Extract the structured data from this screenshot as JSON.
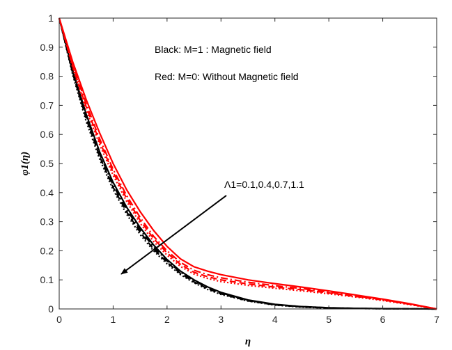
{
  "chart_data": {
    "type": "line",
    "xlabel": "η",
    "ylabel": "φ1(η)",
    "xlim": [
      0,
      7
    ],
    "ylim": [
      0,
      1
    ],
    "xticks": [
      "0",
      "1",
      "2",
      "3",
      "4",
      "5",
      "6",
      "7"
    ],
    "yticks": [
      "0",
      "0.1",
      "0.2",
      "0.3",
      "0.4",
      "0.5",
      "0.6",
      "0.7",
      "0.8",
      "0.9",
      "1"
    ],
    "grid": false,
    "annotations": {
      "black_legend": "Black: M=1 :   Magnetic field",
      "red_legend": "Red:   M=0:   Without Magnetic field",
      "arrow_label": "Λ1=0.1,0.4,0.7,1.1",
      "arrow_from": [
        3.1,
        0.39
      ],
      "arrow_to": [
        1.15,
        0.12
      ]
    },
    "x": [
      0,
      0.25,
      0.5,
      0.75,
      1.0,
      1.25,
      1.5,
      1.75,
      2.0,
      2.25,
      2.5,
      2.75,
      3.0,
      3.5,
      4.0,
      4.5,
      5.0,
      5.5,
      6.0,
      6.5,
      7.0
    ],
    "series": [
      {
        "color": "#000000",
        "dash": "solid",
        "values": [
          1,
          0.82,
          0.67,
          0.54,
          0.435,
          0.35,
          0.28,
          0.22,
          0.17,
          0.13,
          0.1,
          0.076,
          0.057,
          0.031,
          0.016,
          0.008,
          0.004,
          0.002,
          0.001,
          0.0004,
          0
        ]
      },
      {
        "color": "#000000",
        "dash": "dashdot",
        "values": [
          1,
          0.815,
          0.662,
          0.532,
          0.426,
          0.342,
          0.272,
          0.213,
          0.165,
          0.126,
          0.097,
          0.073,
          0.055,
          0.03,
          0.015,
          0.008,
          0.004,
          0.002,
          0.001,
          0.0004,
          0
        ]
      },
      {
        "color": "#000000",
        "dash": "dashed",
        "values": [
          1,
          0.81,
          0.655,
          0.524,
          0.418,
          0.334,
          0.264,
          0.206,
          0.16,
          0.122,
          0.093,
          0.07,
          0.052,
          0.028,
          0.014,
          0.007,
          0.003,
          0.0015,
          0.0008,
          0.0003,
          0
        ]
      },
      {
        "color": "#000000",
        "dash": "dotted",
        "values": [
          1,
          0.805,
          0.645,
          0.515,
          0.41,
          0.326,
          0.256,
          0.2,
          0.155,
          0.118,
          0.09,
          0.067,
          0.05,
          0.027,
          0.013,
          0.006,
          0.003,
          0.0015,
          0.0007,
          0.0003,
          0
        ]
      },
      {
        "color": "#ff0000",
        "dash": "solid",
        "values": [
          1,
          0.85,
          0.72,
          0.605,
          0.5,
          0.41,
          0.335,
          0.27,
          0.215,
          0.172,
          0.145,
          0.13,
          0.118,
          0.1,
          0.087,
          0.075,
          0.062,
          0.048,
          0.034,
          0.018,
          0
        ]
      },
      {
        "color": "#ff0000",
        "dash": "dashdot",
        "values": [
          1,
          0.84,
          0.705,
          0.585,
          0.48,
          0.39,
          0.315,
          0.25,
          0.2,
          0.16,
          0.133,
          0.118,
          0.107,
          0.092,
          0.08,
          0.07,
          0.058,
          0.045,
          0.032,
          0.017,
          0
        ]
      },
      {
        "color": "#ff0000",
        "dash": "dashed",
        "values": [
          1,
          0.835,
          0.695,
          0.575,
          0.47,
          0.38,
          0.305,
          0.242,
          0.193,
          0.153,
          0.126,
          0.111,
          0.1,
          0.086,
          0.075,
          0.066,
          0.055,
          0.043,
          0.031,
          0.016,
          0
        ]
      },
      {
        "color": "#ff0000",
        "dash": "dotted",
        "values": [
          1,
          0.83,
          0.685,
          0.565,
          0.46,
          0.37,
          0.295,
          0.232,
          0.185,
          0.146,
          0.12,
          0.105,
          0.094,
          0.081,
          0.071,
          0.062,
          0.052,
          0.041,
          0.029,
          0.015,
          0
        ]
      }
    ]
  }
}
